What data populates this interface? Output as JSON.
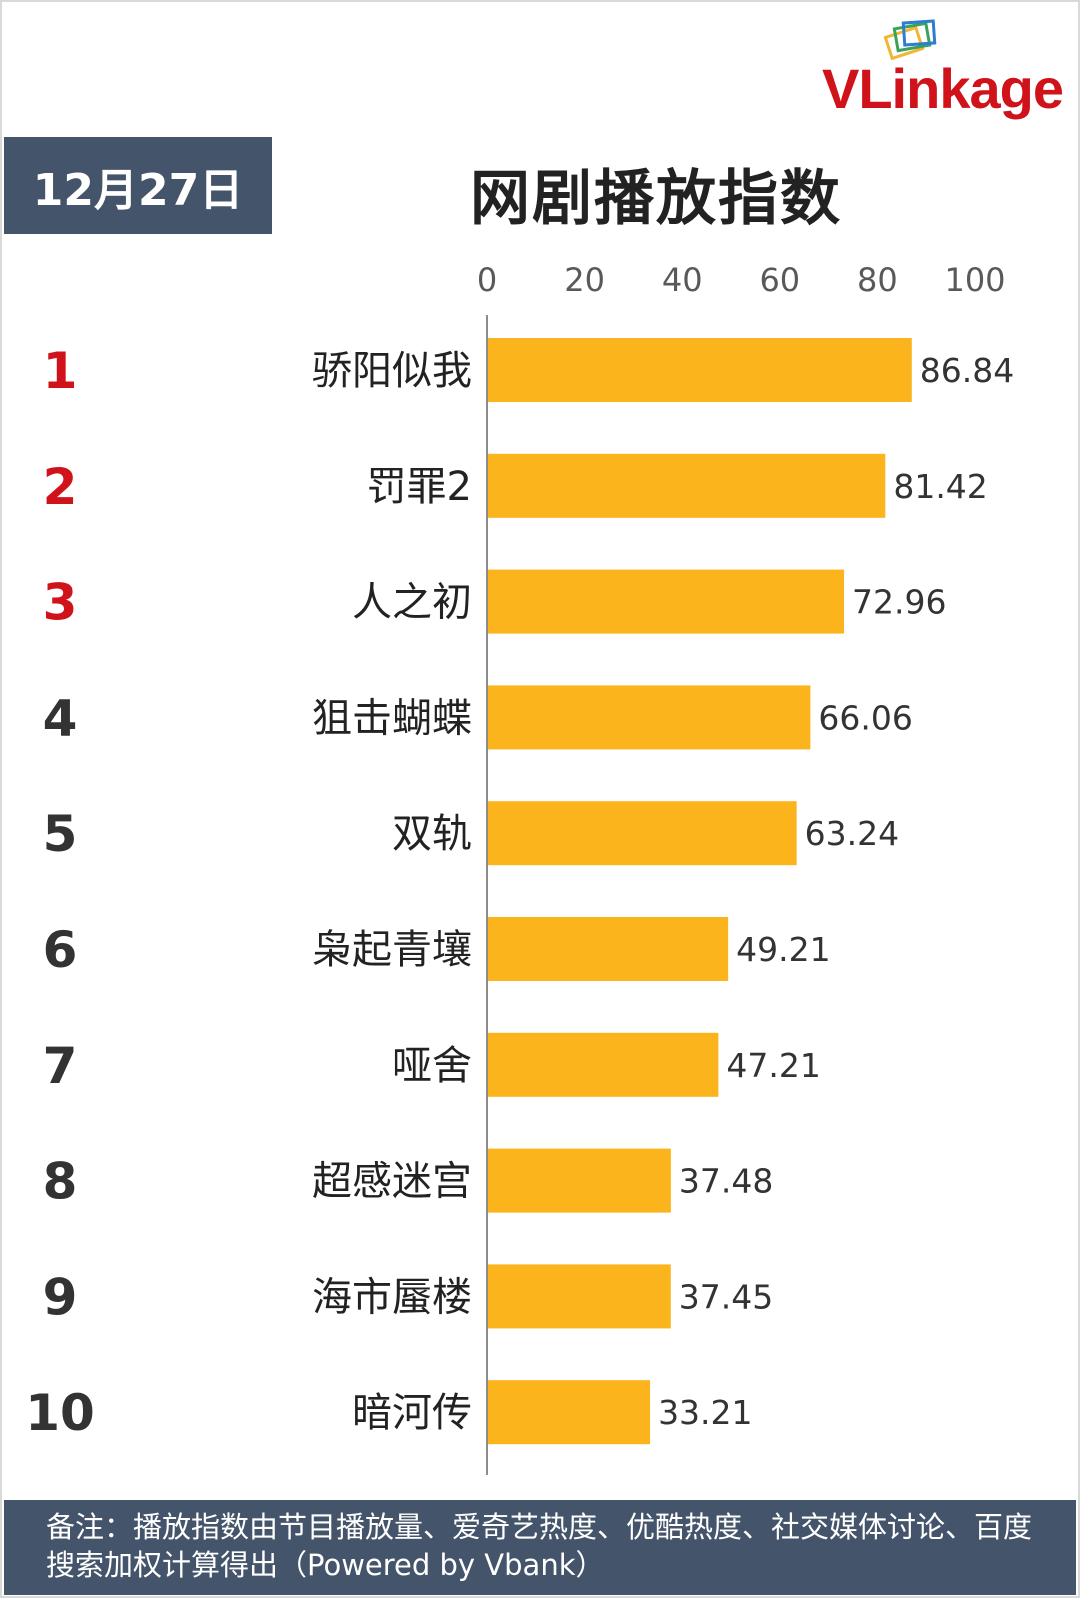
{
  "date_label": "12月27日",
  "title": "网剧播放指数",
  "logo_text": "VLinkage",
  "footer_note": "备注：播放指数由节目播放量、爱奇艺热度、优酷热度、社交媒体讨论、百度搜索加权计算得出（Powered by Vbank）",
  "colors": {
    "bar": "#fbb41b",
    "header_bg": "#44546a",
    "rank_top3": "#d0131b",
    "rank_other": "#333333",
    "brand": "#d0131b"
  },
  "chart_data": {
    "type": "bar",
    "orientation": "horizontal",
    "xlim": [
      0,
      100
    ],
    "x_ticks": [
      "0",
      "20",
      "40",
      "60",
      "80",
      "100"
    ],
    "tick_position": "top",
    "categories": [
      "骄阳似我",
      "罚罪2",
      "人之初",
      "狙击蝴蝶",
      "双轨",
      "枭起青壤",
      "哑舍",
      "超感迷宫",
      "海市蜃楼",
      "暗河传"
    ],
    "ranks": [
      "1",
      "2",
      "3",
      "4",
      "5",
      "6",
      "7",
      "8",
      "9",
      "10"
    ],
    "values": [
      86.84,
      81.42,
      72.96,
      66.06,
      63.24,
      49.21,
      47.21,
      37.48,
      37.45,
      33.21
    ],
    "value_labels": [
      "86.84",
      "81.42",
      "72.96",
      "66.06",
      "63.24",
      "49.21",
      "47.21",
      "37.48",
      "37.45",
      "33.21"
    ],
    "grid": false
  }
}
